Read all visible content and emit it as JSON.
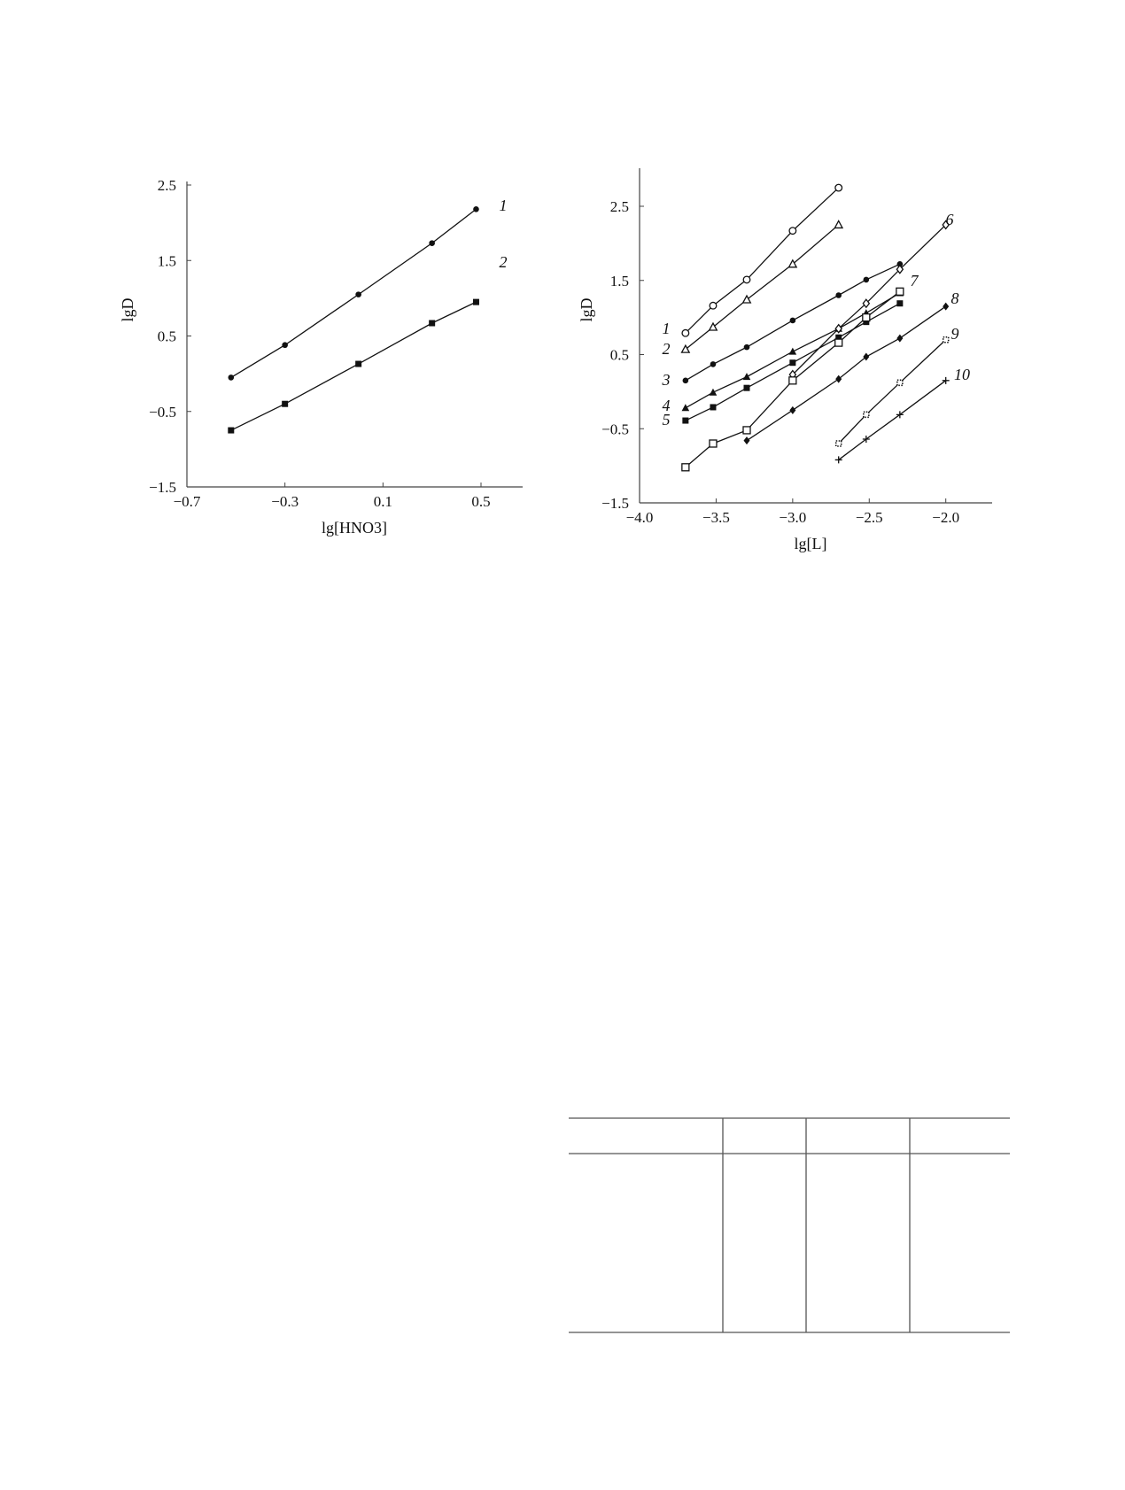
{
  "chart_data": [
    {
      "type": "line",
      "xlabel": "lg[HNO3]",
      "ylabel": "lgD",
      "xlim": [
        -0.7,
        0.8
      ],
      "ylim": [
        -1.5,
        2.5
      ],
      "xticks": [
        "-0.7",
        "-0.3",
        "0.1",
        "0.5"
      ],
      "yticks": [
        "2.5",
        "1.5",
        "0.5",
        "-0.5",
        "-1.5"
      ],
      "grid": false,
      "series": [
        {
          "name": "1",
          "marker": "filled-circle",
          "x": [
            -0.52,
            -0.3,
            0.0,
            0.3,
            0.48
          ],
          "y": [
            -0.05,
            0.38,
            1.05,
            1.73,
            2.18
          ]
        },
        {
          "name": "2",
          "marker": "filled-square",
          "x": [
            -0.52,
            -0.3,
            0.0,
            0.3,
            0.48
          ],
          "y": [
            -0.75,
            -0.4,
            0.13,
            0.67,
            0.95
          ]
        }
      ]
    },
    {
      "type": "line",
      "xlabel": "lg[L]",
      "ylabel": "lgD",
      "xlim": [
        -4.0,
        -1.7
      ],
      "ylim": [
        -1.5,
        3.0
      ],
      "xticks": [
        "-4.0",
        "-3.5",
        "-3.0",
        "-2.5",
        "-2.0"
      ],
      "yticks": [
        "2.5",
        "1.5",
        "0.5",
        "-0.5",
        "-1.5"
      ],
      "grid": false,
      "series": [
        {
          "name": "1",
          "marker": "open-circle",
          "x": [
            -3.7,
            -3.52,
            -3.3,
            -3.0,
            -2.7
          ],
          "y": [
            0.79,
            1.16,
            1.51,
            2.17,
            2.75
          ]
        },
        {
          "name": "2",
          "marker": "open-triangle",
          "x": [
            -3.7,
            -3.52,
            -3.3,
            -3.0,
            -2.7
          ],
          "y": [
            0.57,
            0.87,
            1.24,
            1.72,
            2.25
          ]
        },
        {
          "name": "3",
          "marker": "filled-circle",
          "x": [
            -3.7,
            -3.52,
            -3.3,
            -3.0,
            -2.7,
            -2.52,
            -2.3
          ],
          "y": [
            0.15,
            0.37,
            0.6,
            0.96,
            1.3,
            1.51,
            1.72
          ]
        },
        {
          "name": "4",
          "marker": "filled-triangle",
          "x": [
            -3.7,
            -3.52,
            -3.3,
            -3.0,
            -2.7,
            -2.52,
            -2.3
          ],
          "y": [
            -0.22,
            -0.01,
            0.2,
            0.54,
            0.85,
            1.06,
            1.33
          ]
        },
        {
          "name": "5",
          "marker": "filled-square",
          "x": [
            -3.7,
            -3.52,
            -3.3,
            -3.0,
            -2.7,
            -2.52,
            -2.3
          ],
          "y": [
            -0.39,
            -0.21,
            0.05,
            0.39,
            0.73,
            0.94,
            1.19
          ]
        },
        {
          "name": "6",
          "marker": "open-diamond",
          "x": [
            -3.0,
            -2.7,
            -2.52,
            -2.3,
            -2.0
          ],
          "y": [
            0.23,
            0.85,
            1.19,
            1.65,
            2.25
          ]
        },
        {
          "name": "7",
          "marker": "open-square",
          "x": [
            -3.7,
            -3.52,
            -3.3,
            -3.0,
            -2.7,
            -2.52,
            -2.3
          ],
          "y": [
            -1.02,
            -0.7,
            -0.52,
            0.15,
            0.66,
            1.0,
            1.35
          ]
        },
        {
          "name": "8",
          "marker": "filled-diamond",
          "x": [
            -3.3,
            -3.0,
            -2.7,
            -2.52,
            -2.3,
            -2.0
          ],
          "y": [
            -0.66,
            -0.25,
            0.17,
            0.47,
            0.72,
            1.15
          ]
        },
        {
          "name": "9",
          "marker": "dotted-square",
          "x": [
            -2.7,
            -2.52,
            -2.3,
            -2.0
          ],
          "y": [
            -0.7,
            -0.31,
            0.12,
            0.7
          ]
        },
        {
          "name": "10",
          "marker": "plus",
          "x": [
            -2.7,
            -2.52,
            -2.3,
            -2.0
          ],
          "y": [
            -0.92,
            -0.64,
            -0.31,
            0.15
          ]
        }
      ]
    }
  ]
}
